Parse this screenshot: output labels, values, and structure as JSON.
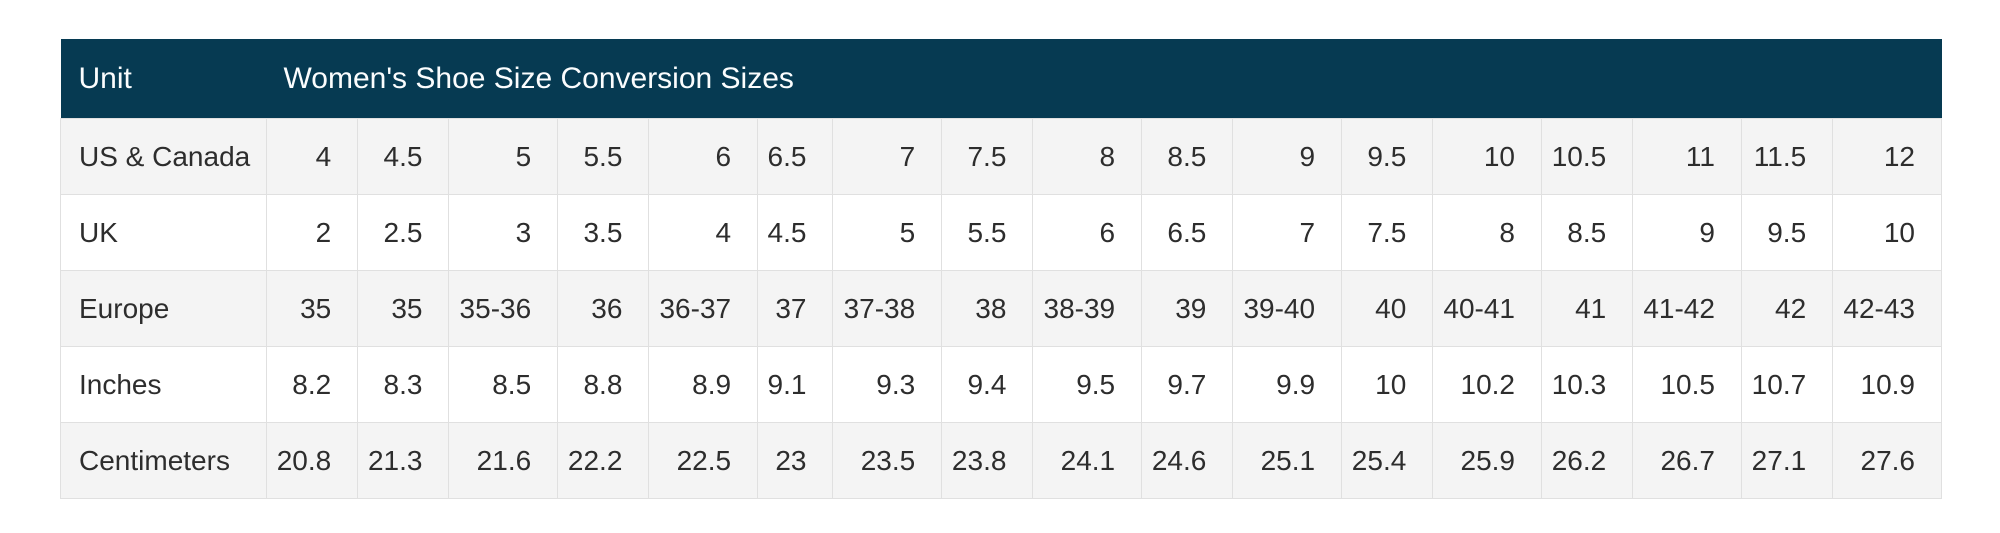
{
  "chart_data": {
    "type": "table",
    "title": "Women's Shoe Size Conversion Sizes",
    "unit_column_header": "Unit",
    "rows": [
      {
        "label": "US & Canada",
        "values": [
          "4",
          "4.5",
          "5",
          "5.5",
          "6",
          "6.5",
          "7",
          "7.5",
          "8",
          "8.5",
          "9",
          "9.5",
          "10",
          "10.5",
          "11",
          "11.5",
          "12"
        ]
      },
      {
        "label": "UK",
        "values": [
          "2",
          "2.5",
          "3",
          "3.5",
          "4",
          "4.5",
          "5",
          "5.5",
          "6",
          "6.5",
          "7",
          "7.5",
          "8",
          "8.5",
          "9",
          "9.5",
          "10"
        ]
      },
      {
        "label": "Europe",
        "values": [
          "35",
          "35",
          "35-36",
          "36",
          "36-37",
          "37",
          "37-38",
          "38",
          "38-39",
          "39",
          "39-40",
          "40",
          "40-41",
          "41",
          "41-42",
          "42",
          "42-43"
        ]
      },
      {
        "label": "Inches",
        "values": [
          "8.2",
          "8.3",
          "8.5",
          "8.8",
          "8.9",
          "9.1",
          "9.3",
          "9.4",
          "9.5",
          "9.7",
          "9.9",
          "10",
          "10.2",
          "10.3",
          "10.5",
          "10.7",
          "10.9"
        ]
      },
      {
        "label": "Centimeters",
        "values": [
          "20.8",
          "21.3",
          "21.6",
          "22.2",
          "22.5",
          "23",
          "23.5",
          "23.8",
          "24.1",
          "24.6",
          "25.1",
          "25.4",
          "25.9",
          "26.2",
          "26.7",
          "27.1",
          "27.6"
        ]
      }
    ],
    "layout": {
      "legend": "none",
      "grid": "cell-borders",
      "striped_rows": true
    },
    "colors": {
      "header_bg": "#063a52",
      "header_text": "#fbfdfe",
      "row_alt_bg": "#f4f4f4",
      "row_bg": "#ffffff",
      "border": "#e0e0e0",
      "text": "#2d2d2d"
    }
  }
}
